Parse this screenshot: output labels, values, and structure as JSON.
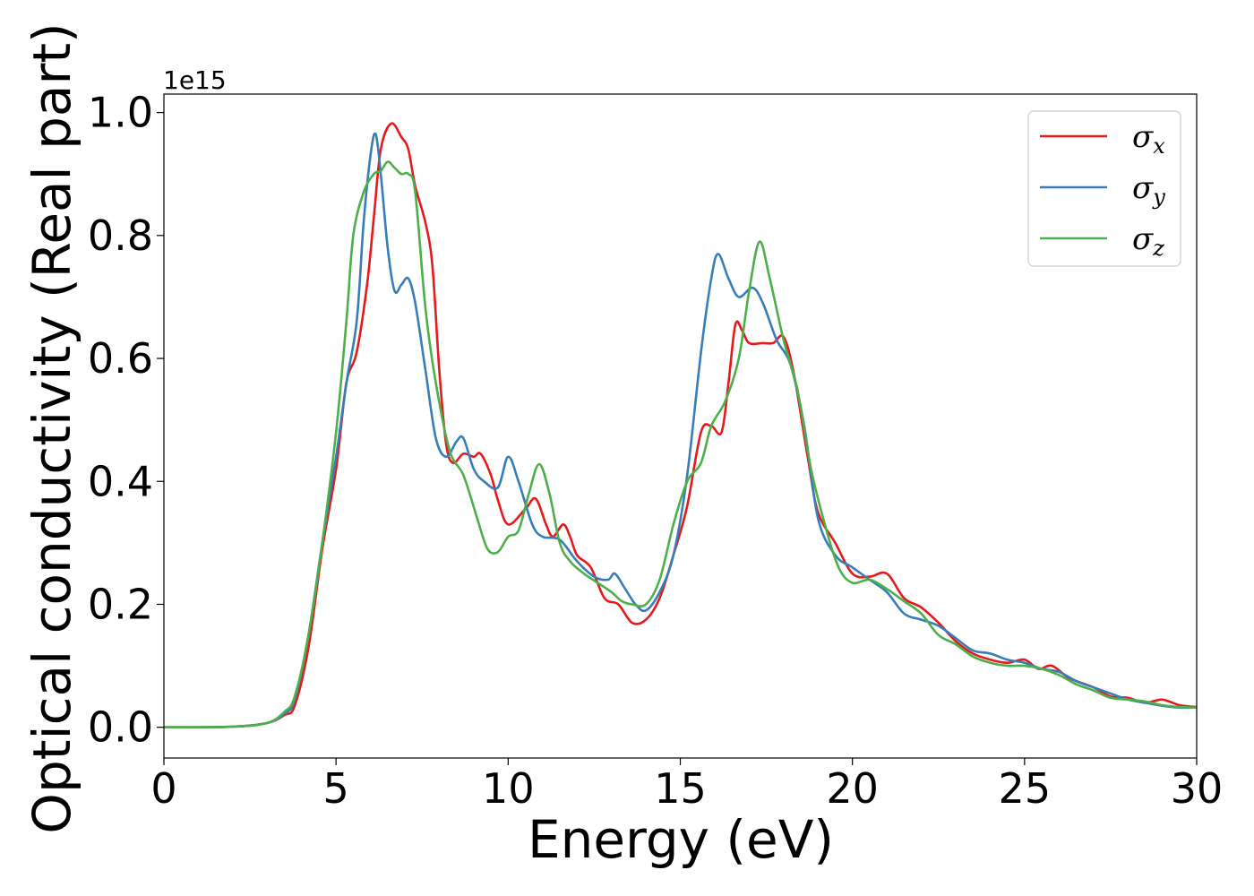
{
  "chart_data": {
    "type": "line",
    "xlabel": "Energy (eV)",
    "ylabel": "Optical conductivity (Real part)",
    "offset_text": "1e15",
    "xlim": [
      0,
      30
    ],
    "ylim": [
      -0.05,
      1.03
    ],
    "xticks": [
      0,
      5,
      10,
      15,
      20,
      25,
      30
    ],
    "xtick_labels": [
      "0",
      "5",
      "10",
      "15",
      "20",
      "25",
      "30"
    ],
    "yticks": [
      0.0,
      0.2,
      0.4,
      0.6,
      0.8,
      1.0
    ],
    "ytick_labels": [
      "0.0",
      "0.2",
      "0.4",
      "0.6",
      "0.8",
      "1.0"
    ],
    "grid": false,
    "legend_position": "top-right",
    "series": [
      {
        "name": "σx",
        "symbol": "σ",
        "sub": "x",
        "color": "#e41a1c",
        "points": [
          [
            0,
            0
          ],
          [
            2,
            0.001
          ],
          [
            3,
            0.007
          ],
          [
            3.5,
            0.02
          ],
          [
            3.8,
            0.035
          ],
          [
            4.2,
            0.13
          ],
          [
            4.6,
            0.29
          ],
          [
            5,
            0.42
          ],
          [
            5.3,
            0.56
          ],
          [
            5.6,
            0.61
          ],
          [
            5.9,
            0.72
          ],
          [
            6.1,
            0.83
          ],
          [
            6.3,
            0.94
          ],
          [
            6.6,
            0.982
          ],
          [
            6.9,
            0.96
          ],
          [
            7.1,
            0.94
          ],
          [
            7.3,
            0.88
          ],
          [
            7.6,
            0.82
          ],
          [
            7.8,
            0.75
          ],
          [
            8.0,
            0.58
          ],
          [
            8.2,
            0.46
          ],
          [
            8.4,
            0.43
          ],
          [
            8.7,
            0.445
          ],
          [
            9.0,
            0.44
          ],
          [
            9.2,
            0.445
          ],
          [
            9.5,
            0.41
          ],
          [
            9.7,
            0.37
          ],
          [
            10.0,
            0.33
          ],
          [
            10.5,
            0.355
          ],
          [
            10.8,
            0.372
          ],
          [
            11.1,
            0.33
          ],
          [
            11.3,
            0.31
          ],
          [
            11.6,
            0.33
          ],
          [
            11.8,
            0.31
          ],
          [
            12.0,
            0.28
          ],
          [
            12.4,
            0.26
          ],
          [
            12.8,
            0.21
          ],
          [
            13.2,
            0.2
          ],
          [
            13.6,
            0.17
          ],
          [
            14.0,
            0.175
          ],
          [
            14.4,
            0.21
          ],
          [
            14.8,
            0.28
          ],
          [
            15.2,
            0.36
          ],
          [
            15.6,
            0.48
          ],
          [
            15.9,
            0.49
          ],
          [
            16.2,
            0.48
          ],
          [
            16.4,
            0.56
          ],
          [
            16.6,
            0.655
          ],
          [
            16.8,
            0.645
          ],
          [
            17.0,
            0.625
          ],
          [
            17.4,
            0.625
          ],
          [
            17.7,
            0.625
          ],
          [
            18.0,
            0.635
          ],
          [
            18.3,
            0.575
          ],
          [
            18.7,
            0.44
          ],
          [
            19.0,
            0.35
          ],
          [
            19.5,
            0.3
          ],
          [
            20.0,
            0.25
          ],
          [
            20.5,
            0.245
          ],
          [
            21.0,
            0.25
          ],
          [
            21.5,
            0.21
          ],
          [
            22.0,
            0.195
          ],
          [
            22.5,
            0.17
          ],
          [
            23.0,
            0.14
          ],
          [
            23.5,
            0.12
          ],
          [
            24.0,
            0.11
          ],
          [
            24.5,
            0.105
          ],
          [
            25.0,
            0.11
          ],
          [
            25.4,
            0.095
          ],
          [
            25.8,
            0.1
          ],
          [
            26.3,
            0.08
          ],
          [
            27.0,
            0.065
          ],
          [
            27.5,
            0.05
          ],
          [
            28.0,
            0.048
          ],
          [
            28.5,
            0.04
          ],
          [
            29.0,
            0.045
          ],
          [
            29.5,
            0.036
          ],
          [
            30,
            0.033
          ]
        ]
      },
      {
        "name": "σy",
        "symbol": "σ",
        "sub": "y",
        "color": "#377eb8",
        "points": [
          [
            0,
            0
          ],
          [
            2,
            0.001
          ],
          [
            3,
            0.007
          ],
          [
            3.5,
            0.022
          ],
          [
            3.8,
            0.045
          ],
          [
            4.2,
            0.15
          ],
          [
            4.6,
            0.3
          ],
          [
            5,
            0.44
          ],
          [
            5.3,
            0.56
          ],
          [
            5.6,
            0.66
          ],
          [
            5.8,
            0.82
          ],
          [
            6.0,
            0.93
          ],
          [
            6.15,
            0.965
          ],
          [
            6.3,
            0.9
          ],
          [
            6.5,
            0.78
          ],
          [
            6.7,
            0.71
          ],
          [
            6.9,
            0.72
          ],
          [
            7.1,
            0.73
          ],
          [
            7.3,
            0.69
          ],
          [
            7.6,
            0.58
          ],
          [
            7.9,
            0.47
          ],
          [
            8.2,
            0.44
          ],
          [
            8.5,
            0.465
          ],
          [
            8.7,
            0.47
          ],
          [
            9.0,
            0.42
          ],
          [
            9.3,
            0.4
          ],
          [
            9.7,
            0.39
          ],
          [
            10.0,
            0.44
          ],
          [
            10.3,
            0.4
          ],
          [
            10.7,
            0.33
          ],
          [
            11.0,
            0.31
          ],
          [
            11.5,
            0.305
          ],
          [
            12.0,
            0.27
          ],
          [
            12.5,
            0.245
          ],
          [
            12.9,
            0.24
          ],
          [
            13.1,
            0.25
          ],
          [
            13.4,
            0.225
          ],
          [
            13.7,
            0.2
          ],
          [
            14.0,
            0.19
          ],
          [
            14.4,
            0.22
          ],
          [
            14.8,
            0.28
          ],
          [
            15.2,
            0.41
          ],
          [
            15.6,
            0.61
          ],
          [
            15.9,
            0.73
          ],
          [
            16.1,
            0.77
          ],
          [
            16.4,
            0.73
          ],
          [
            16.7,
            0.7
          ],
          [
            17.1,
            0.715
          ],
          [
            17.4,
            0.69
          ],
          [
            17.8,
            0.63
          ],
          [
            18.2,
            0.59
          ],
          [
            18.6,
            0.49
          ],
          [
            19.0,
            0.34
          ],
          [
            19.5,
            0.28
          ],
          [
            20.0,
            0.26
          ],
          [
            20.5,
            0.24
          ],
          [
            21.0,
            0.22
          ],
          [
            21.5,
            0.185
          ],
          [
            22.0,
            0.175
          ],
          [
            22.5,
            0.165
          ],
          [
            23.0,
            0.145
          ],
          [
            23.5,
            0.125
          ],
          [
            24.0,
            0.12
          ],
          [
            24.5,
            0.11
          ],
          [
            25.0,
            0.105
          ],
          [
            25.5,
            0.095
          ],
          [
            26.0,
            0.09
          ],
          [
            26.5,
            0.075
          ],
          [
            27.0,
            0.065
          ],
          [
            27.5,
            0.055
          ],
          [
            28.0,
            0.045
          ],
          [
            28.5,
            0.04
          ],
          [
            29.0,
            0.035
          ],
          [
            29.5,
            0.032
          ],
          [
            30,
            0.032
          ]
        ]
      },
      {
        "name": "σz",
        "symbol": "σ",
        "sub": "z",
        "color": "#4daf4a",
        "points": [
          [
            0,
            0
          ],
          [
            2,
            0.001
          ],
          [
            3,
            0.007
          ],
          [
            3.5,
            0.025
          ],
          [
            3.8,
            0.05
          ],
          [
            4.2,
            0.15
          ],
          [
            4.6,
            0.3
          ],
          [
            5,
            0.48
          ],
          [
            5.3,
            0.66
          ],
          [
            5.5,
            0.8
          ],
          [
            5.8,
            0.87
          ],
          [
            6.1,
            0.9
          ],
          [
            6.3,
            0.905
          ],
          [
            6.5,
            0.92
          ],
          [
            6.7,
            0.91
          ],
          [
            6.9,
            0.9
          ],
          [
            7.1,
            0.9
          ],
          [
            7.3,
            0.87
          ],
          [
            7.6,
            0.68
          ],
          [
            7.9,
            0.56
          ],
          [
            8.3,
            0.45
          ],
          [
            8.7,
            0.41
          ],
          [
            9.1,
            0.34
          ],
          [
            9.4,
            0.29
          ],
          [
            9.7,
            0.285
          ],
          [
            10.0,
            0.31
          ],
          [
            10.3,
            0.32
          ],
          [
            10.6,
            0.38
          ],
          [
            10.9,
            0.428
          ],
          [
            11.2,
            0.38
          ],
          [
            11.5,
            0.3
          ],
          [
            11.8,
            0.27
          ],
          [
            12.2,
            0.25
          ],
          [
            12.6,
            0.235
          ],
          [
            13.0,
            0.22
          ],
          [
            13.3,
            0.205
          ],
          [
            13.6,
            0.2
          ],
          [
            14.0,
            0.2
          ],
          [
            14.4,
            0.24
          ],
          [
            14.8,
            0.33
          ],
          [
            15.2,
            0.4
          ],
          [
            15.6,
            0.43
          ],
          [
            15.9,
            0.49
          ],
          [
            16.3,
            0.53
          ],
          [
            16.7,
            0.6
          ],
          [
            17.0,
            0.71
          ],
          [
            17.3,
            0.79
          ],
          [
            17.6,
            0.73
          ],
          [
            18.0,
            0.63
          ],
          [
            18.4,
            0.55
          ],
          [
            18.8,
            0.42
          ],
          [
            19.2,
            0.33
          ],
          [
            19.6,
            0.26
          ],
          [
            20.0,
            0.235
          ],
          [
            20.5,
            0.24
          ],
          [
            21.0,
            0.225
          ],
          [
            21.5,
            0.205
          ],
          [
            22.0,
            0.185
          ],
          [
            22.5,
            0.15
          ],
          [
            23.0,
            0.135
          ],
          [
            23.5,
            0.115
          ],
          [
            24.0,
            0.105
          ],
          [
            24.5,
            0.1
          ],
          [
            25.0,
            0.1
          ],
          [
            25.5,
            0.095
          ],
          [
            26.0,
            0.085
          ],
          [
            26.5,
            0.07
          ],
          [
            27.0,
            0.06
          ],
          [
            27.5,
            0.048
          ],
          [
            28.0,
            0.045
          ],
          [
            28.5,
            0.042
          ],
          [
            29.0,
            0.036
          ],
          [
            29.5,
            0.033
          ],
          [
            30,
            0.032
          ]
        ]
      }
    ]
  }
}
